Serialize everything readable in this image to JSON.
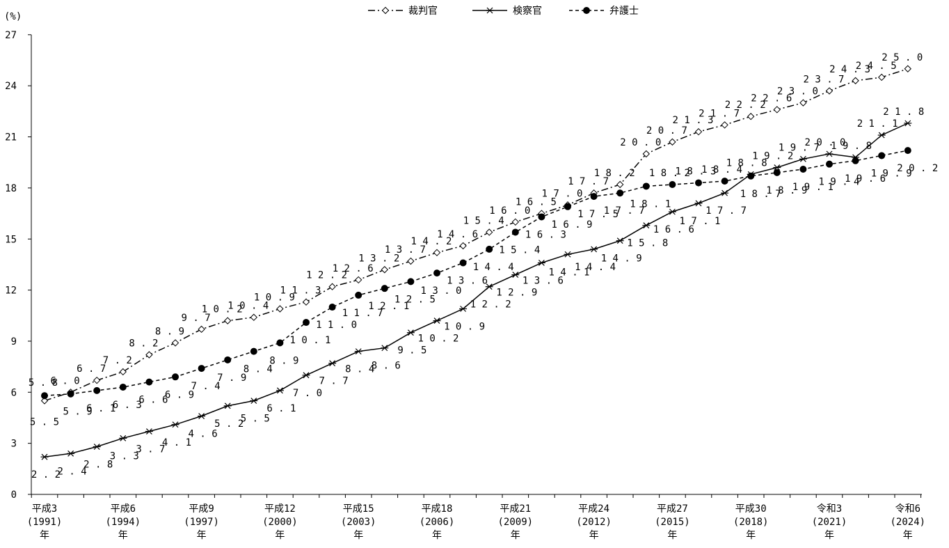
{
  "chart_data": {
    "type": "line",
    "y_unit": "(%)",
    "ylim": [
      0,
      27
    ],
    "yticks": [
      0,
      3,
      6,
      9,
      12,
      15,
      18,
      21,
      24,
      27
    ],
    "grid": false,
    "legend_position": "top-center",
    "x": [
      "平成3(1991)年",
      "平成4(1992)年",
      "平成5(1993)年",
      "平成6(1994)年",
      "平成7(1995)年",
      "平成8(1996)年",
      "平成9(1997)年",
      "平成10(1998)年",
      "平成11(1999)年",
      "平成12(2000)年",
      "平成13(2001)年",
      "平成14(2002)年",
      "平成15(2003)年",
      "平成16(2004)年",
      "平成17(2005)年",
      "平成18(2006)年",
      "平成19(2007)年",
      "平成20(2008)年",
      "平成21(2009)年",
      "平成22(2010)年",
      "平成23(2011)年",
      "平成24(2012)年",
      "平成25(2013)年",
      "平成26(2014)年",
      "平成27(2015)年",
      "平成28(2016)年",
      "平成29(2017)年",
      "平成30(2018)年",
      "令和元(2019)年",
      "令和2(2020)年",
      "令和3(2021)年",
      "令和4(2022)年",
      "令和5(2023)年",
      "令和6(2024)年"
    ],
    "x_tick_labels": [
      {
        "index": 0,
        "lines": [
          "平成3",
          "(1991)",
          "年"
        ]
      },
      {
        "index": 3,
        "lines": [
          "平成6",
          "(1994)",
          "年"
        ]
      },
      {
        "index": 6,
        "lines": [
          "平成9",
          "(1997)",
          "年"
        ]
      },
      {
        "index": 9,
        "lines": [
          "平成12",
          "(2000)",
          "年"
        ]
      },
      {
        "index": 12,
        "lines": [
          "平成15",
          "(2003)",
          "年"
        ]
      },
      {
        "index": 15,
        "lines": [
          "平成18",
          "(2006)",
          "年"
        ]
      },
      {
        "index": 18,
        "lines": [
          "平成21",
          "(2009)",
          "年"
        ]
      },
      {
        "index": 21,
        "lines": [
          "平成24",
          "(2012)",
          "年"
        ]
      },
      {
        "index": 24,
        "lines": [
          "平成27",
          "(2015)",
          "年"
        ]
      },
      {
        "index": 27,
        "lines": [
          "平成30",
          "(2018)",
          "年"
        ]
      },
      {
        "index": 30,
        "lines": [
          "令和3",
          "(2021)",
          "年"
        ]
      },
      {
        "index": 33,
        "lines": [
          "令和6",
          "(2024)",
          "年"
        ]
      }
    ],
    "series": [
      {
        "name": "裁判官",
        "style": "dash-dot",
        "marker": "open-diamond",
        "label_side": "above",
        "color": "#000000",
        "values": [
          5.5,
          6.0,
          6.7,
          7.2,
          8.2,
          8.9,
          9.7,
          10.2,
          10.4,
          10.9,
          11.3,
          12.2,
          12.6,
          13.2,
          13.7,
          14.2,
          14.6,
          15.4,
          16.0,
          16.5,
          17.0,
          17.7,
          18.2,
          20.0,
          20.7,
          21.3,
          21.7,
          22.2,
          22.6,
          23.0,
          23.7,
          24.3,
          24.5,
          25.0
        ]
      },
      {
        "name": "検察官",
        "style": "solid",
        "marker": "asterisk",
        "label_side": "below",
        "color": "#000000",
        "values": [
          2.2,
          2.4,
          2.8,
          3.3,
          3.7,
          4.1,
          4.6,
          5.2,
          5.5,
          6.1,
          7.0,
          7.7,
          8.4,
          8.6,
          9.5,
          10.2,
          10.9,
          12.2,
          12.9,
          13.6,
          14.1,
          14.4,
          14.9,
          15.8,
          16.6,
          17.1,
          17.7,
          18.8,
          19.2,
          19.7,
          20.0,
          19.8,
          21.1,
          21.8
        ]
      },
      {
        "name": "弁護士",
        "style": "dashed",
        "marker": "filled-circle",
        "label_side": "mixed",
        "color": "#000000",
        "values": [
          5.8,
          5.9,
          6.1,
          6.3,
          6.6,
          6.9,
          7.4,
          7.9,
          8.4,
          8.9,
          10.1,
          11.0,
          11.7,
          12.1,
          12.5,
          13.0,
          13.6,
          14.4,
          15.4,
          16.3,
          16.9,
          17.5,
          17.7,
          18.1,
          18.2,
          18.3,
          18.4,
          18.7,
          18.9,
          19.1,
          19.4,
          19.6,
          19.9,
          20.2
        ]
      }
    ]
  }
}
